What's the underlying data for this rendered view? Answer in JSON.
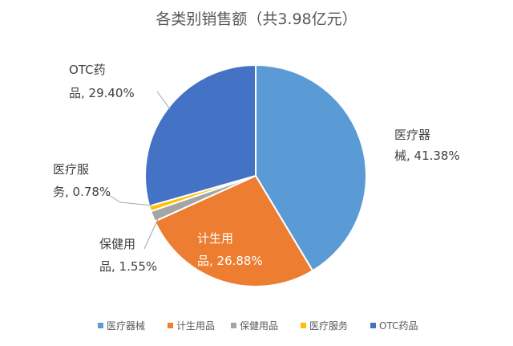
{
  "chart_data": {
    "type": "pie",
    "title": "各类别销售额（共3.98亿元）",
    "categories": [
      "医疗器械",
      "计生用品",
      "保健用品",
      "医疗服务",
      "OTC药品"
    ],
    "values": [
      41.38,
      26.88,
      1.55,
      0.78,
      29.4
    ],
    "colors": [
      "#5b9bd5",
      "#ed7d31",
      "#a5a5a5",
      "#ffc000",
      "#4472c4"
    ],
    "data_labels": [
      {
        "line1": "医疗器",
        "line2": "械, 41.38%"
      },
      {
        "line1": "计生用",
        "line2": "品, 26.88%"
      },
      {
        "line1": "保健用",
        "line2": "品, 1.55%"
      },
      {
        "line1": "医疗服",
        "line2": "务, 0.78%"
      },
      {
        "line1": "OTC药",
        "line2": "品, 29.40%"
      }
    ],
    "legend_position": "bottom"
  }
}
